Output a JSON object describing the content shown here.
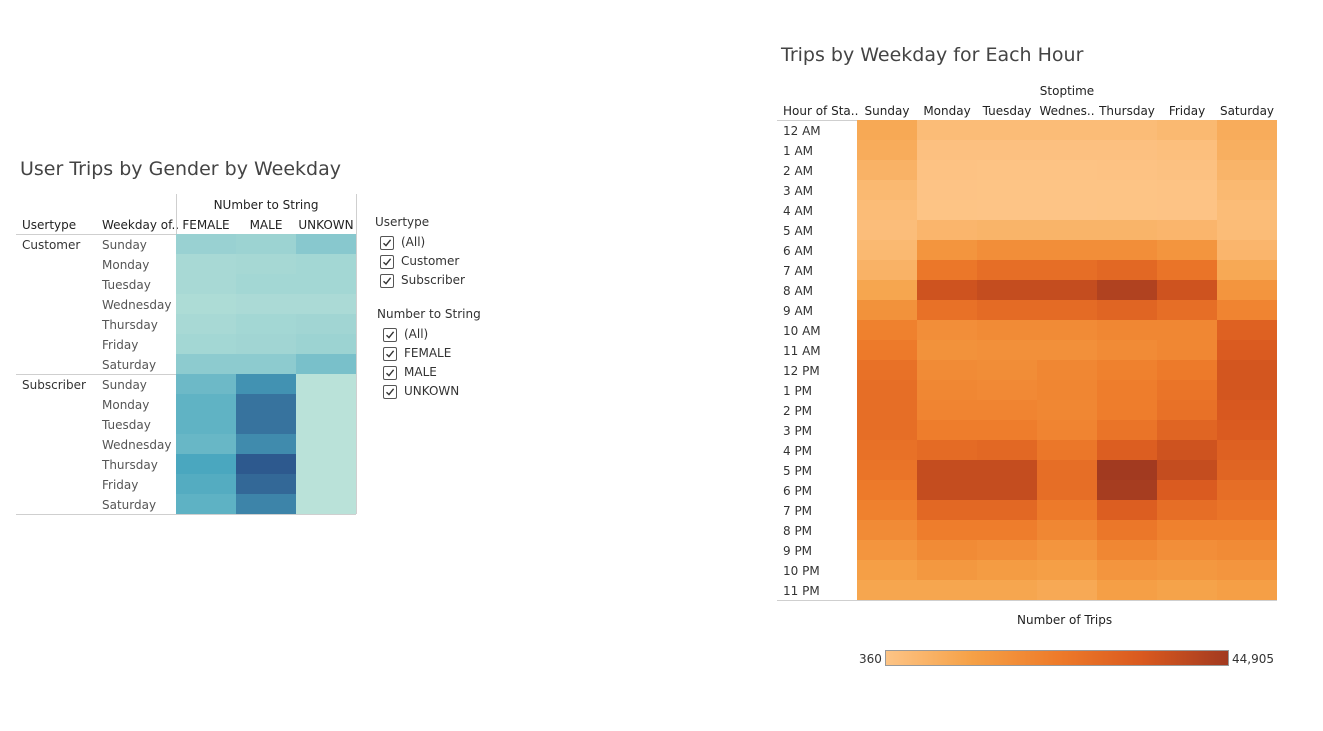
{
  "left_panel": {
    "title": "User Trips by Gender by Weekday",
    "col_group_header": "NUmber to String",
    "row_header_usertype": "Usertype",
    "row_header_weekday": "Weekday of..",
    "columns": [
      "FEMALE",
      "MALE",
      "UNKOWN"
    ],
    "groups": [
      {
        "name": "Customer",
        "days": [
          "Sunday",
          "Monday",
          "Tuesday",
          "Wednesday",
          "Thursday",
          "Friday",
          "Saturday"
        ]
      },
      {
        "name": "Subscriber",
        "days": [
          "Sunday",
          "Monday",
          "Tuesday",
          "Wednesday",
          "Thursday",
          "Friday",
          "Saturday"
        ]
      }
    ],
    "color_scale": {
      "low": "#c6e9dc",
      "mid": "#4aa7bf",
      "high": "#2a5088"
    }
  },
  "filters": [
    {
      "title": "Usertype",
      "items": [
        {
          "label": "(All)",
          "checked": true
        },
        {
          "label": "Customer",
          "checked": true
        },
        {
          "label": "Subscriber",
          "checked": true
        }
      ]
    },
    {
      "title": "Number to String",
      "items": [
        {
          "label": "(All)",
          "checked": true
        },
        {
          "label": "FEMALE",
          "checked": true
        },
        {
          "label": "MALE",
          "checked": true
        },
        {
          "label": "UNKOWN",
          "checked": true
        }
      ]
    }
  ],
  "right_panel": {
    "title": "Trips by Weekday for Each Hour",
    "col_group_header": "Stoptime",
    "row_header": "Hour of Sta..",
    "columns": [
      "Sunday",
      "Monday",
      "Tuesday",
      "Wednes..",
      "Thursday",
      "Friday",
      "Saturday"
    ],
    "rows": [
      "12 AM",
      "1 AM",
      "2 AM",
      "3 AM",
      "4 AM",
      "5 AM",
      "6 AM",
      "7 AM",
      "8 AM",
      "9 AM",
      "10 AM",
      "11 AM",
      "12 PM",
      "1 PM",
      "2 PM",
      "3 PM",
      "4 PM",
      "5 PM",
      "6 PM",
      "7 PM",
      "8 PM",
      "9 PM",
      "10 PM",
      "11 PM"
    ],
    "legend": {
      "title": "Number of Trips",
      "min_label": "360",
      "max_label": "44,905",
      "min": 360,
      "max": 44905
    },
    "color_scale": [
      "#fdc486",
      "#f5a147",
      "#ee7b2a",
      "#d9591f",
      "#a23a20"
    ]
  },
  "chart_data": [
    {
      "type": "heatmap",
      "title": "User Trips by Gender by Weekday",
      "x": [
        "FEMALE",
        "MALE",
        "UNKOWN"
      ],
      "y": [
        "Customer / Sunday",
        "Customer / Monday",
        "Customer / Tuesday",
        "Customer / Wednesday",
        "Customer / Thursday",
        "Customer / Friday",
        "Customer / Saturday",
        "Subscriber / Sunday",
        "Subscriber / Monday",
        "Subscriber / Tuesday",
        "Subscriber / Wednesday",
        "Subscriber / Thursday",
        "Subscriber / Friday",
        "Subscriber / Saturday"
      ],
      "values": [
        [
          0.18,
          0.17,
          0.25
        ],
        [
          0.12,
          0.13,
          0.14
        ],
        [
          0.12,
          0.14,
          0.14
        ],
        [
          0.1,
          0.11,
          0.11
        ],
        [
          0.12,
          0.14,
          0.15
        ],
        [
          0.14,
          0.15,
          0.17
        ],
        [
          0.23,
          0.23,
          0.31
        ],
        [
          0.36,
          0.62,
          0.05
        ],
        [
          0.41,
          0.8,
          0.05
        ],
        [
          0.41,
          0.8,
          0.05
        ],
        [
          0.38,
          0.66,
          0.05
        ],
        [
          0.5,
          0.95,
          0.05
        ],
        [
          0.46,
          0.86,
          0.05
        ],
        [
          0.42,
          0.7,
          0.05
        ]
      ]
    },
    {
      "type": "heatmap",
      "title": "Trips by Weekday for Each Hour",
      "x": [
        "Sunday",
        "Monday",
        "Tuesday",
        "Wednes..",
        "Thursday",
        "Friday",
        "Saturday"
      ],
      "y": [
        "12 AM",
        "1 AM",
        "2 AM",
        "3 AM",
        "4 AM",
        "5 AM",
        "6 AM",
        "7 AM",
        "8 AM",
        "9 AM",
        "10 AM",
        "11 AM",
        "12 PM",
        "1 PM",
        "2 PM",
        "3 PM",
        "4 PM",
        "5 PM",
        "6 PM",
        "7 PM",
        "8 PM",
        "9 PM",
        "10 PM",
        "11 PM"
      ],
      "value_range": [
        360,
        44905
      ],
      "values": [
        [
          9000,
          3000,
          3000,
          3000,
          3000,
          4000,
          8000
        ],
        [
          8000,
          1500,
          1500,
          1500,
          1500,
          2000,
          7000
        ],
        [
          6000,
          900,
          800,
          800,
          900,
          1200,
          5500
        ],
        [
          4000,
          600,
          500,
          500,
          500,
          800,
          4000
        ],
        [
          3000,
          500,
          400,
          400,
          450,
          600,
          3000
        ],
        [
          2500,
          5000,
          5500,
          5500,
          5500,
          5000,
          3000
        ],
        [
          4000,
          15000,
          17000,
          17000,
          17000,
          15000,
          5000
        ],
        [
          6000,
          24000,
          27000,
          27000,
          29000,
          25000,
          9000
        ],
        [
          10000,
          36000,
          38000,
          38000,
          42000,
          36000,
          15000
        ],
        [
          16000,
          26000,
          28000,
          28000,
          30000,
          27000,
          20000
        ],
        [
          21000,
          17000,
          18000,
          18000,
          19000,
          19000,
          31000
        ],
        [
          23000,
          16000,
          16500,
          16500,
          18000,
          19000,
          33000
        ],
        [
          26000,
          18000,
          17500,
          19000,
          21000,
          23000,
          35000
        ],
        [
          27000,
          19000,
          18500,
          19500,
          22000,
          25000,
          35000
        ],
        [
          27000,
          20000,
          20000,
          19000,
          22000,
          26000,
          34000
        ],
        [
          27000,
          22000,
          22000,
          20000,
          25000,
          30000,
          33000
        ],
        [
          26000,
          28000,
          29000,
          24000,
          32000,
          36000,
          31000
        ],
        [
          25000,
          38000,
          38000,
          27000,
          44905,
          38000,
          30000
        ],
        [
          23000,
          38000,
          38000,
          27000,
          44000,
          33000,
          27000
        ],
        [
          21000,
          29000,
          29000,
          23000,
          32000,
          27000,
          25000
        ],
        [
          18000,
          22000,
          22000,
          19000,
          24000,
          21000,
          21000
        ],
        [
          15000,
          18000,
          17000,
          15000,
          19000,
          17000,
          18000
        ],
        [
          12000,
          14000,
          13000,
          12000,
          15000,
          14000,
          15000
        ],
        [
          10000,
          10000,
          10000,
          9000,
          12000,
          11000,
          12000
        ]
      ]
    }
  ]
}
